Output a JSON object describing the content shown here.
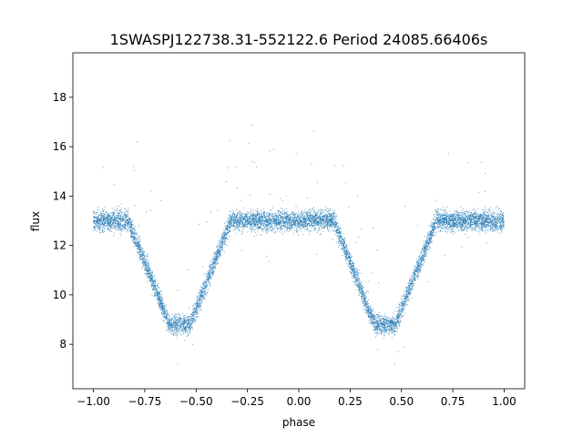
{
  "chart_data": {
    "type": "scatter",
    "title": "1SWASPJ122738.31-552122.6 Period 24085.66406s",
    "xlabel": "phase",
    "ylabel": "flux",
    "xlim": [
      -1.1,
      1.1
    ],
    "ylim": [
      6.2,
      19.8
    ],
    "x_ticks": [
      -1.0,
      -0.75,
      -0.5,
      -0.25,
      0.0,
      0.25,
      0.5,
      0.75,
      1.0
    ],
    "x_tick_labels": [
      "−1.00",
      "−0.75",
      "−0.50",
      "−0.25",
      "0.00",
      "0.25",
      "0.50",
      "0.75",
      "1.00"
    ],
    "y_ticks": [
      8,
      10,
      12,
      14,
      16,
      18
    ],
    "y_tick_labels": [
      "8",
      "10",
      "12",
      "14",
      "16",
      "18"
    ],
    "grid": false,
    "legend": "none",
    "marker_color": "#1f77b4",
    "series": [
      {
        "baseline_flux": 13.0,
        "eclipses": [
          {
            "center_phase": -0.58,
            "min_flux": 8.8
          },
          {
            "center_phase": 0.42,
            "min_flux": 8.8
          }
        ],
        "sample_points": [
          {
            "x": -1.0,
            "y": 13.0
          },
          {
            "x": -0.9,
            "y": 13.1
          },
          {
            "x": -0.8,
            "y": 12.2
          },
          {
            "x": -0.7,
            "y": 10.0
          },
          {
            "x": -0.6,
            "y": 8.8
          },
          {
            "x": -0.55,
            "y": 8.9
          },
          {
            "x": -0.45,
            "y": 10.3
          },
          {
            "x": -0.35,
            "y": 12.6
          },
          {
            "x": -0.25,
            "y": 13.1
          },
          {
            "x": 0.0,
            "y": 12.9
          },
          {
            "x": 0.1,
            "y": 13.1
          },
          {
            "x": 0.2,
            "y": 12.2
          },
          {
            "x": 0.3,
            "y": 10.0
          },
          {
            "x": 0.4,
            "y": 8.8
          },
          {
            "x": 0.45,
            "y": 8.9
          },
          {
            "x": 0.55,
            "y": 10.3
          },
          {
            "x": 0.65,
            "y": 12.6
          },
          {
            "x": 0.75,
            "y": 13.0
          },
          {
            "x": 1.0,
            "y": 13.0
          }
        ]
      }
    ]
  }
}
